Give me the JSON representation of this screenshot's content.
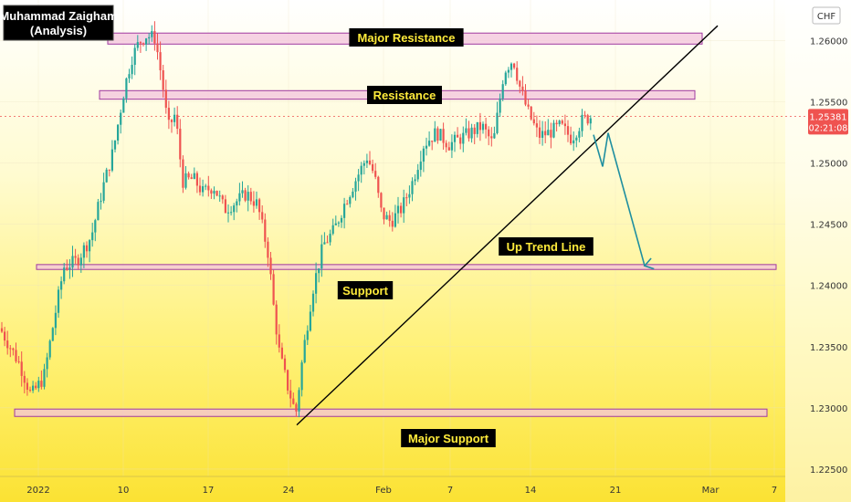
{
  "header": {
    "author_line1": "Muhammad Zaigham",
    "author_line2": "(Analysis)",
    "currency_badge": "CHF"
  },
  "price_badge": {
    "price": "1.25381",
    "countdown": "02:21:08"
  },
  "chart_data": {
    "type": "candlestick",
    "symbol_currency": "CHF",
    "ylim": [
      1.2244,
      1.2633
    ],
    "y_ticks": [
      "1.26000",
      "1.25500",
      "1.25000",
      "1.24500",
      "1.24000",
      "1.23500",
      "1.23000",
      "1.22500"
    ],
    "y_tick_values": [
      1.26,
      1.255,
      1.25,
      1.245,
      1.24,
      1.235,
      1.23,
      1.225
    ],
    "x_ticks": [
      "2022",
      "10",
      "17",
      "24",
      "Feb",
      "7",
      "14",
      "21",
      "Mar",
      "7"
    ],
    "last_price": 1.25381,
    "annotations": [
      {
        "label": "Major Resistance",
        "kind": "zone",
        "y_low": 1.2597,
        "y_high": 1.2606
      },
      {
        "label": "Resistance",
        "kind": "zone",
        "y_low": 1.2552,
        "y_high": 1.2559
      },
      {
        "label": "Support",
        "kind": "zone",
        "y_low": 1.2413,
        "y_high": 1.2417
      },
      {
        "label": "Major Support",
        "kind": "zone",
        "y_low": 1.2293,
        "y_high": 1.2299
      },
      {
        "label": "Up Trend Line",
        "kind": "line",
        "from": {
          "x": "24",
          "y": 1.2286
        },
        "to": {
          "x": "Mar",
          "y": 1.2612
        }
      }
    ],
    "projection": {
      "points": [
        1.2523,
        1.2497,
        1.2416
      ]
    }
  },
  "colors": {
    "bg_top": "#ffffff",
    "bg_mid": "#fff59d",
    "bg_bottom": "#fbe233",
    "zone_fill": "#f3c3dc",
    "zone_stroke": "#a03aa0",
    "label_bg": "#000000",
    "label_text": "#ffeb3b",
    "candle_up": "#26a69a",
    "candle_down": "#ef5350",
    "price_badge": "#ef5350",
    "trend_line": "#000000",
    "projection": "#1f8fa0"
  }
}
